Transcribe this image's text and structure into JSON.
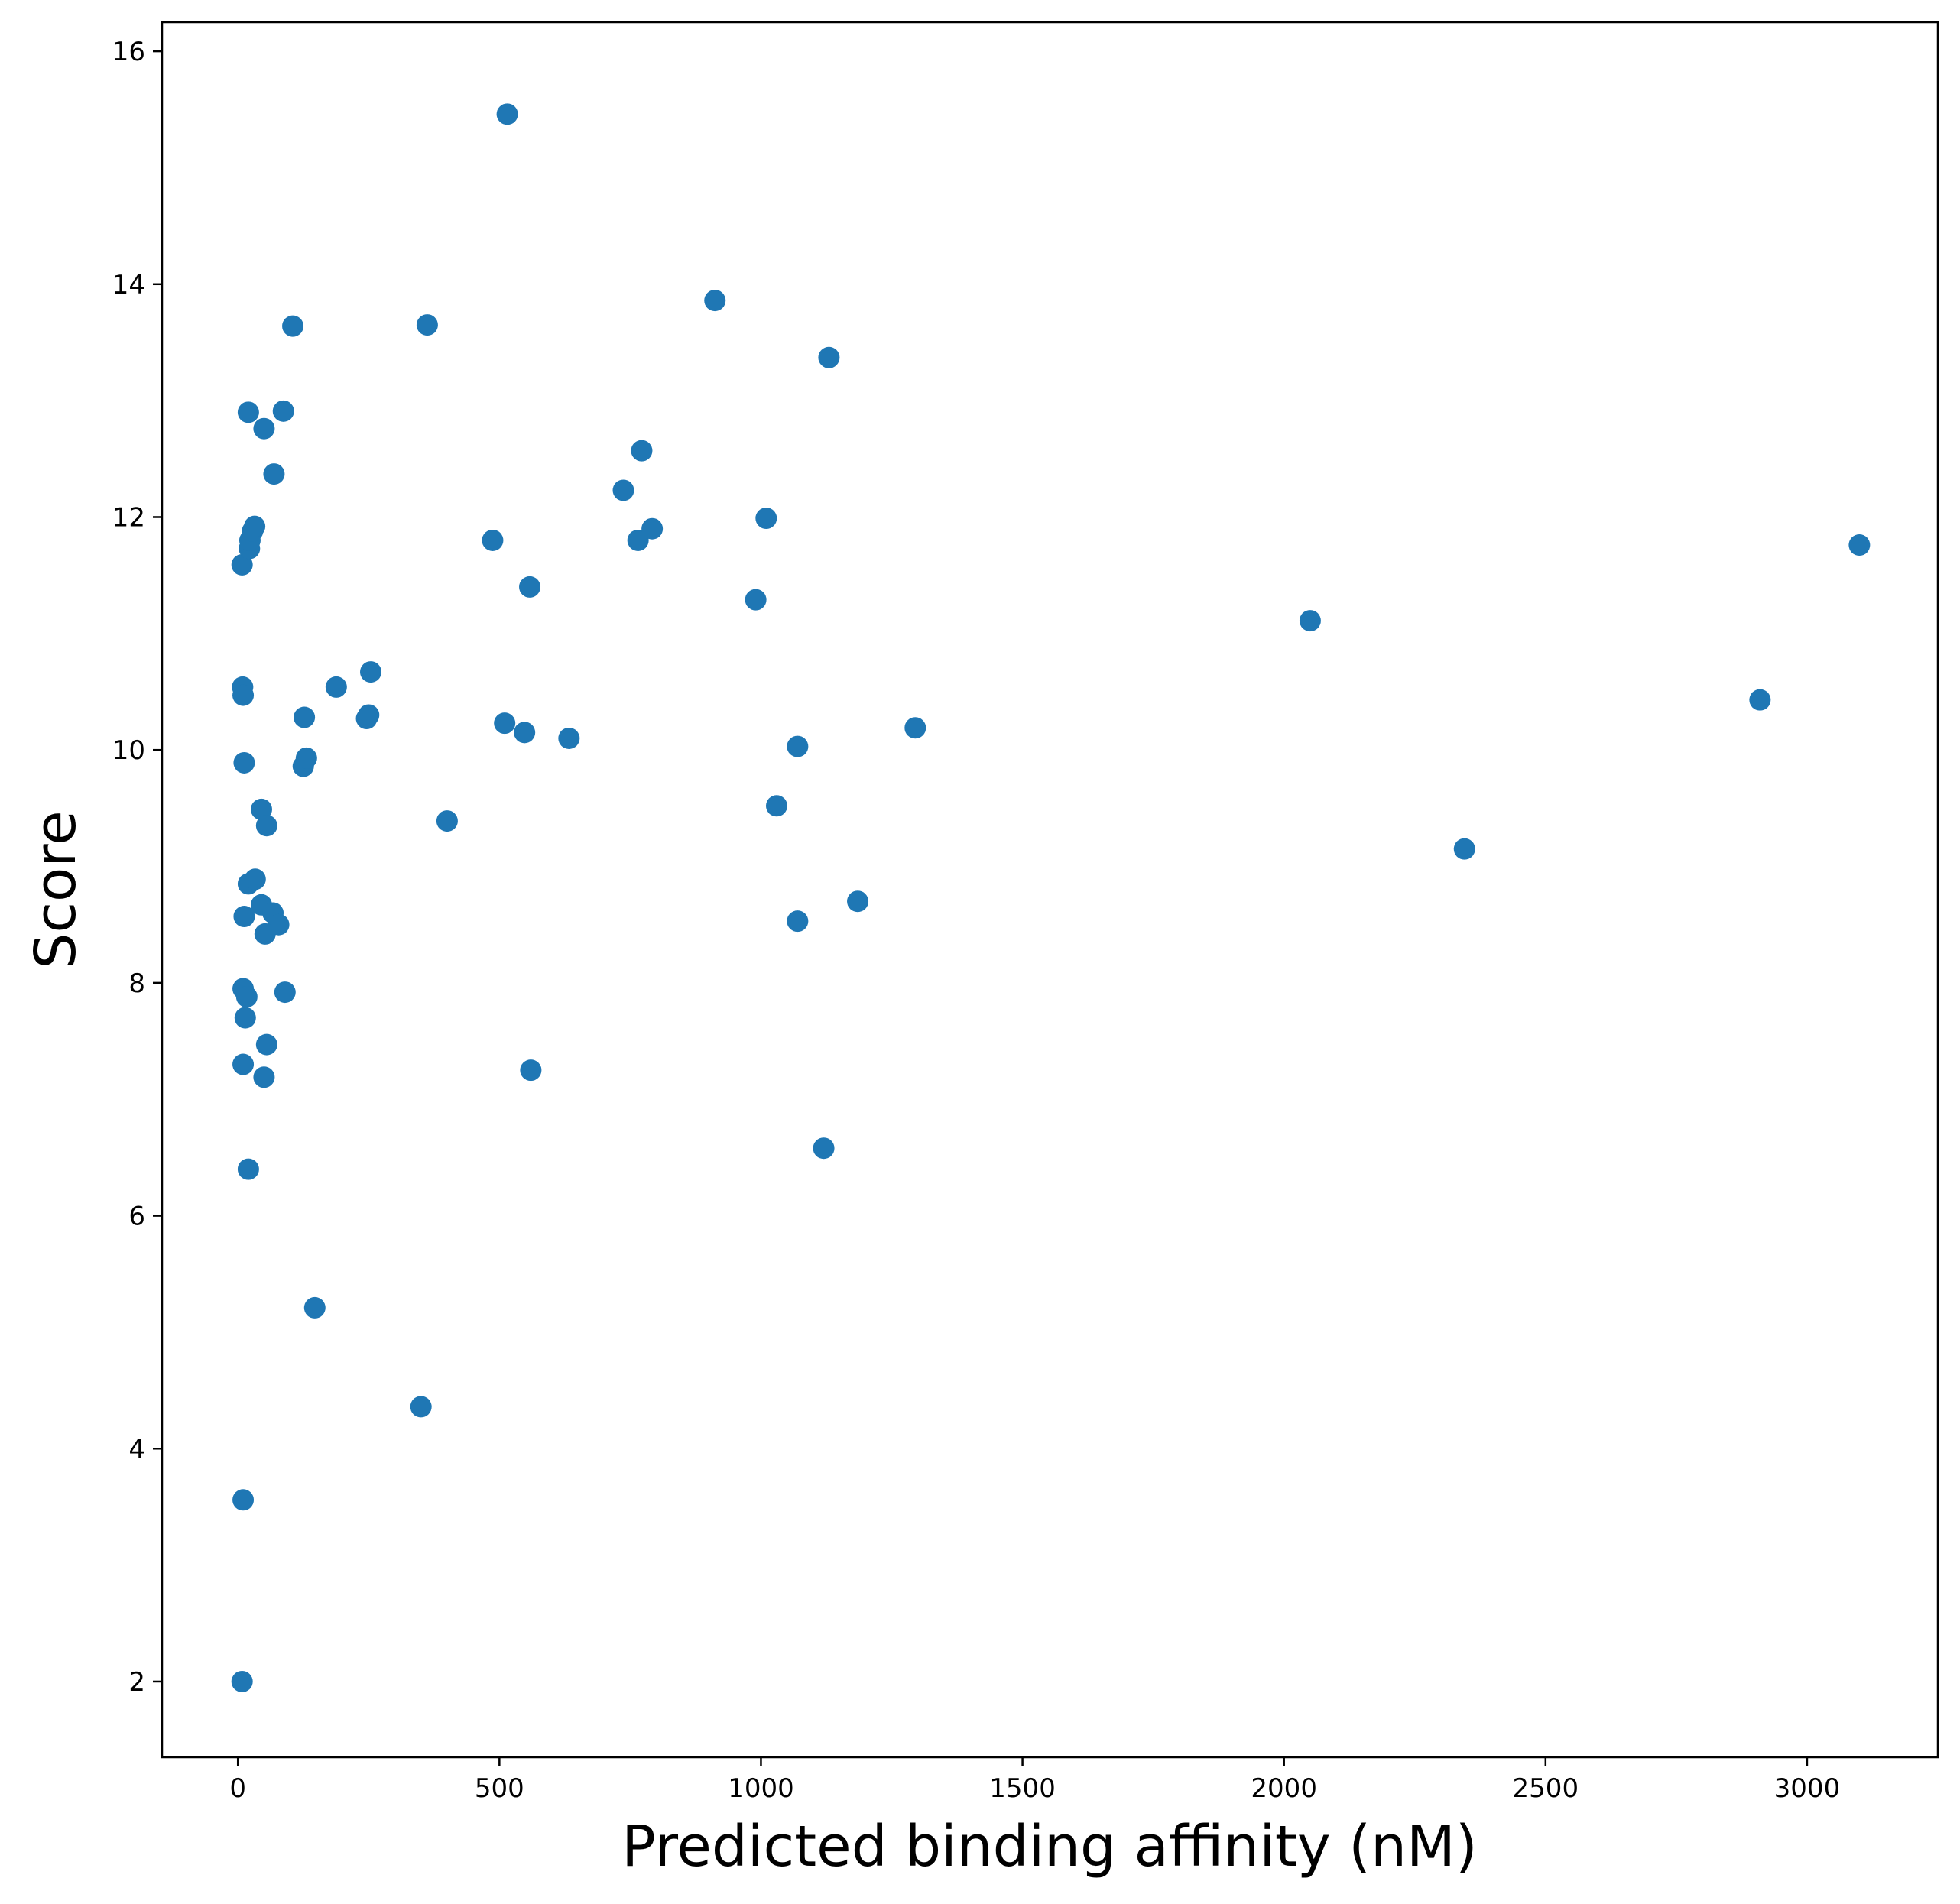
{
  "chart_data": {
    "type": "scatter",
    "xlabel": "Predicted binding affinity (nM)",
    "ylabel": "Score",
    "xlim": [
      -145,
      3250
    ],
    "ylim": [
      1.35,
      16.25
    ],
    "x_ticks": [
      0,
      500,
      1000,
      1500,
      2000,
      2500,
      3000
    ],
    "y_ticks": [
      2,
      4,
      6,
      8,
      10,
      12,
      14,
      16
    ],
    "grid": false,
    "legend": "none",
    "marker_color": "#1f77b4",
    "points": [
      {
        "x": 8,
        "y": 2.0
      },
      {
        "x": 10,
        "y": 3.56
      },
      {
        "x": 350,
        "y": 4.36
      },
      {
        "x": 147,
        "y": 5.21
      },
      {
        "x": 20,
        "y": 6.4
      },
      {
        "x": 1120,
        "y": 6.58
      },
      {
        "x": 10,
        "y": 7.3
      },
      {
        "x": 50,
        "y": 7.19
      },
      {
        "x": 55,
        "y": 7.47
      },
      {
        "x": 560,
        "y": 7.25
      },
      {
        "x": 10,
        "y": 7.95
      },
      {
        "x": 17,
        "y": 7.88
      },
      {
        "x": 14,
        "y": 7.7
      },
      {
        "x": 90,
        "y": 7.92
      },
      {
        "x": 12,
        "y": 8.57
      },
      {
        "x": 20,
        "y": 8.85
      },
      {
        "x": 33,
        "y": 8.89
      },
      {
        "x": 45,
        "y": 8.67
      },
      {
        "x": 67,
        "y": 8.6
      },
      {
        "x": 78,
        "y": 8.5
      },
      {
        "x": 52,
        "y": 8.42
      },
      {
        "x": 1070,
        "y": 8.53
      },
      {
        "x": 1185,
        "y": 8.7
      },
      {
        "x": 45,
        "y": 9.49
      },
      {
        "x": 55,
        "y": 9.35
      },
      {
        "x": 400,
        "y": 9.39
      },
      {
        "x": 1030,
        "y": 9.52
      },
      {
        "x": 2345,
        "y": 9.15
      },
      {
        "x": 12,
        "y": 9.89
      },
      {
        "x": 125,
        "y": 9.86
      },
      {
        "x": 131,
        "y": 9.93
      },
      {
        "x": 127,
        "y": 10.28
      },
      {
        "x": 246,
        "y": 10.27
      },
      {
        "x": 250,
        "y": 10.3
      },
      {
        "x": 510,
        "y": 10.23
      },
      {
        "x": 548,
        "y": 10.15
      },
      {
        "x": 633,
        "y": 10.1
      },
      {
        "x": 1070,
        "y": 10.03
      },
      {
        "x": 1295,
        "y": 10.19
      },
      {
        "x": 2910,
        "y": 10.43
      },
      {
        "x": 9,
        "y": 10.54
      },
      {
        "x": 10,
        "y": 10.47
      },
      {
        "x": 188,
        "y": 10.54
      },
      {
        "x": 254,
        "y": 10.67
      },
      {
        "x": 2050,
        "y": 11.11
      },
      {
        "x": 990,
        "y": 11.29
      },
      {
        "x": 558,
        "y": 11.4
      },
      {
        "x": 8,
        "y": 11.59
      },
      {
        "x": 22,
        "y": 11.73
      },
      {
        "x": 23,
        "y": 11.8
      },
      {
        "x": 28,
        "y": 11.88
      },
      {
        "x": 32,
        "y": 11.92
      },
      {
        "x": 487,
        "y": 11.8
      },
      {
        "x": 765,
        "y": 11.8
      },
      {
        "x": 792,
        "y": 11.9
      },
      {
        "x": 1010,
        "y": 11.99
      },
      {
        "x": 3100,
        "y": 11.76
      },
      {
        "x": 69,
        "y": 12.37
      },
      {
        "x": 737,
        "y": 12.23
      },
      {
        "x": 772,
        "y": 12.57
      },
      {
        "x": 50,
        "y": 12.76
      },
      {
        "x": 20,
        "y": 12.9
      },
      {
        "x": 87,
        "y": 12.91
      },
      {
        "x": 105,
        "y": 13.64
      },
      {
        "x": 362,
        "y": 13.65
      },
      {
        "x": 1130,
        "y": 13.37
      },
      {
        "x": 912,
        "y": 13.86
      },
      {
        "x": 515,
        "y": 15.46
      }
    ]
  }
}
